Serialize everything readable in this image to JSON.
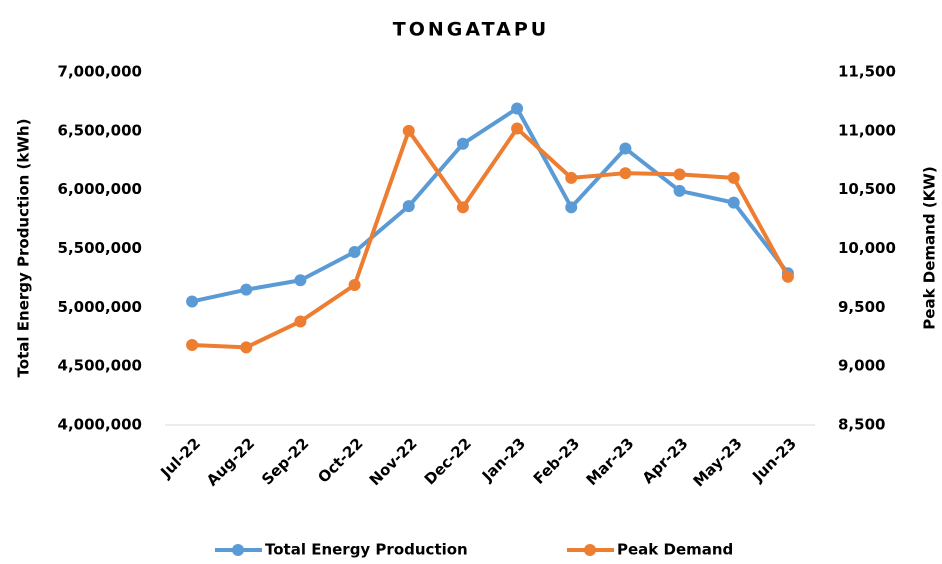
{
  "chart_data": {
    "type": "line",
    "title": "TONGATAPU",
    "y_label": "Total Energy Production (kWh)",
    "y2_label": "Peak Demand (KW)",
    "categories": [
      "Jul-22",
      "Aug-22",
      "Sep-22",
      "Oct-22",
      "Nov-22",
      "Dec-22",
      "Jan-23",
      "Feb-23",
      "Mar-23",
      "Apr-23",
      "May-23",
      "Jun-23"
    ],
    "series": [
      {
        "name": "Total Energy Production",
        "color": "#5b9bd5",
        "values": [
          5050000,
          5150000,
          5230000,
          5470000,
          5860000,
          6390000,
          6690000,
          5850000,
          6350000,
          5990000,
          5890000,
          5290000
        ]
      },
      {
        "name": "Peak Demand",
        "color": "#ed7d31",
        "axis": "y2",
        "values": [
          9180,
          9160,
          9380,
          9690,
          11000,
          10350,
          11020,
          10600,
          10640,
          10630,
          10600,
          9760
        ]
      }
    ],
    "ylim": [
      4000000,
      7000000
    ],
    "yticks": [
      {
        "value": 4000000,
        "label": "4,000,000"
      },
      {
        "value": 4500000,
        "label": "4,500,000"
      },
      {
        "value": 5000000,
        "label": "5,000,000"
      },
      {
        "value": 5500000,
        "label": "5,500,000"
      },
      {
        "value": 6000000,
        "label": "6,000,000"
      },
      {
        "value": 6500000,
        "label": "6,500,000"
      },
      {
        "value": 7000000,
        "label": "7,000,000"
      }
    ],
    "y2lim": [
      8500,
      11500
    ],
    "y2ticks": [
      {
        "value": 8500,
        "label": "8,500"
      },
      {
        "value": 9000,
        "label": "9,000"
      },
      {
        "value": 9500,
        "label": "9,500"
      },
      {
        "value": 10000,
        "label": "10,000"
      },
      {
        "value": 10500,
        "label": "10,500"
      },
      {
        "value": 11000,
        "label": "11,000"
      },
      {
        "value": 11500,
        "label": "11,500"
      }
    ],
    "legend": "bottom"
  }
}
